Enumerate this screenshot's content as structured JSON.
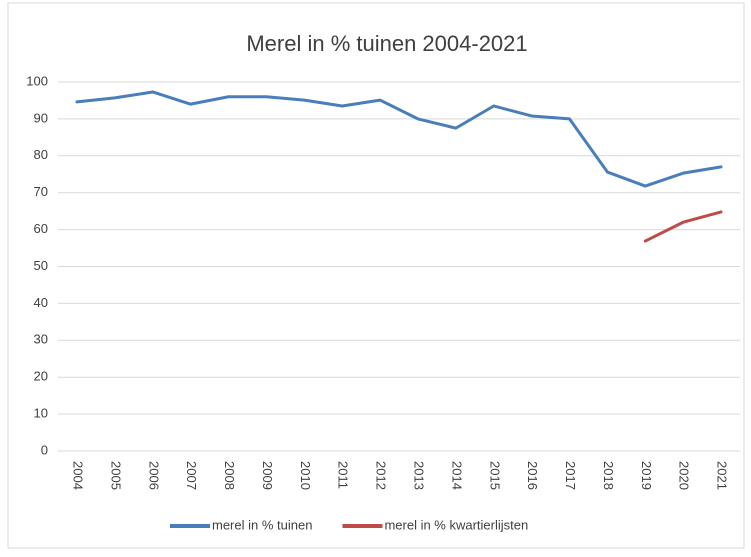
{
  "chart_data": {
    "type": "line",
    "title": "Merel in % tuinen 2004-2021",
    "categories": [
      "2004",
      "2005",
      "2006",
      "2007",
      "2008",
      "2009",
      "2010",
      "2011",
      "2012",
      "2013",
      "2014",
      "2015",
      "2016",
      "2017",
      "2018",
      "2019",
      "2020",
      "2021"
    ],
    "series": [
      {
        "name": "merel in % tuinen",
        "color": "#4a7ebb",
        "values": [
          94.6,
          95.7,
          97.3,
          94,
          96,
          96,
          95.1,
          93.5,
          95.1,
          90,
          87.5,
          93.5,
          90.8,
          90,
          75.6,
          71.8,
          75.3,
          77
        ]
      },
      {
        "name": "merel in % kwartierlijsten",
        "color": "#be4b48",
        "values": [
          null,
          null,
          null,
          null,
          null,
          null,
          null,
          null,
          null,
          null,
          null,
          null,
          null,
          null,
          null,
          56.9,
          62,
          64.8
        ]
      }
    ],
    "ylim": [
      0,
      100
    ],
    "yticks": [
      0,
      10,
      20,
      30,
      40,
      50,
      60,
      70,
      80,
      90,
      100
    ],
    "grid": true,
    "legend": "bottom"
  }
}
